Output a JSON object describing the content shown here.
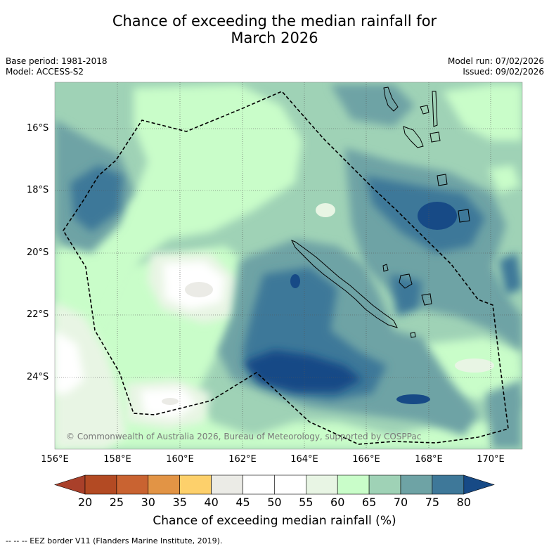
{
  "title": {
    "line1": "Chance of exceeding the median rainfall for",
    "line2": "March 2026"
  },
  "meta": {
    "base_period": "Base period: 1981-2018",
    "model": "Model: ACCESS-S2",
    "model_run": "Model run: 07/02/2026",
    "issued": "Issued: 09/02/2026"
  },
  "map": {
    "lat_labels": [
      "16°S",
      "18°S",
      "20°S",
      "22°S",
      "24°S"
    ],
    "lon_labels": [
      "156°E",
      "158°E",
      "160°E",
      "162°E",
      "164°E",
      "166°E",
      "168°E",
      "170°E"
    ],
    "copyright": "© Commonwealth of Australia 2026, Bureau of Meteorology, supported by COSPPac"
  },
  "colorbar": {
    "title": "Chance of exceeding median rainfall (%)",
    "tick_labels": [
      "20",
      "25",
      "30",
      "35",
      "40",
      "45",
      "50",
      "55",
      "60",
      "65",
      "70",
      "75",
      "80"
    ],
    "colors": [
      "#a9402a",
      "#b34a23",
      "#c96331",
      "#e29445",
      "#fdd06b",
      "#ebebe6",
      "#ffffff",
      "#ffffff",
      "#e8f5e4",
      "#c9fdc9",
      "#9fd2b6",
      "#6ea3a5",
      "#3e7899",
      "#174a86"
    ]
  },
  "footnote": "--  --  -- EEZ border V11 (Flanders Marine Institute, 2019)."
}
